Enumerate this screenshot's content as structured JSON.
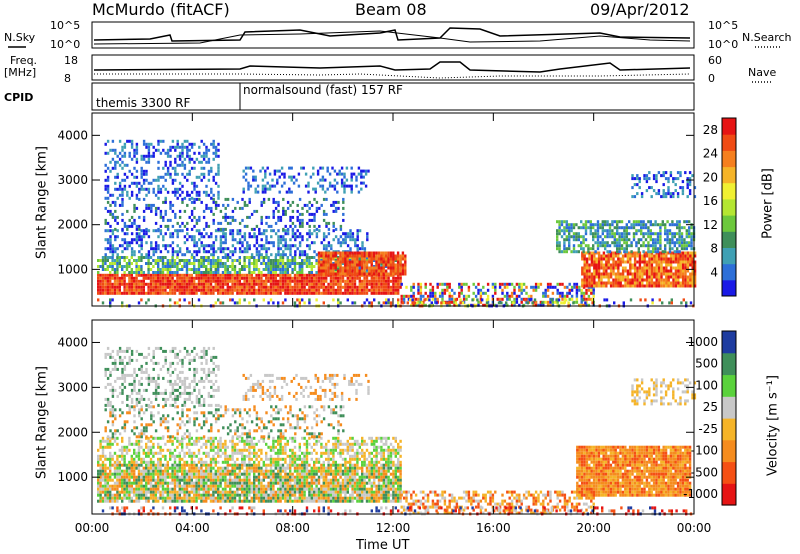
{
  "header": {
    "station": "McMurdo (fitACF)",
    "beam": "Beam 08",
    "date": "09/Apr/2012"
  },
  "status_panel": {
    "nsky_label": "N.Sky",
    "nsky_ticks": [
      "10^5",
      "10^0"
    ],
    "nsearch_label": "N.Search",
    "nsearch_ticks": [
      "10^5",
      "10^0"
    ],
    "freq_label_line1": "Freq.",
    "freq_label_line2": "[MHz]",
    "freq_ticks": [
      "18",
      "8"
    ],
    "nave_label": "Nave",
    "nave_ticks": [
      "60",
      "0"
    ],
    "cpid_label": "CPID",
    "cpid_entries": [
      "themis 3300 RF",
      "normalsound (fast) 157 RF"
    ]
  },
  "chart_data": [
    {
      "type": "heatmap",
      "title": "",
      "ylabel": "Slant Range [km]",
      "xlabel": "",
      "x_ticks": [
        "00:00",
        "04:00",
        "08:00",
        "12:00",
        "16:00",
        "20:00",
        "00:00"
      ],
      "xlim_hours": [
        0,
        24
      ],
      "y_ticks": [
        1000,
        2000,
        3000,
        4000
      ],
      "ylim": [
        180,
        4500
      ],
      "colorbar": {
        "label": "Power [dB]",
        "ticks": [
          4,
          8,
          12,
          16,
          20,
          24,
          28
        ],
        "range": [
          0,
          30
        ],
        "colors": [
          "#1a1ae6",
          "#2d6fd8",
          "#3fa0b4",
          "#3f8f5a",
          "#6cc83c",
          "#b4e632",
          "#f0f032",
          "#f5b428",
          "#f57f1e",
          "#f04b14",
          "#e61414"
        ]
      }
    },
    {
      "type": "heatmap",
      "title": "",
      "ylabel": "Slant Range [km]",
      "xlabel": "Time UT",
      "x_ticks": [
        "00:00",
        "04:00",
        "08:00",
        "12:00",
        "16:00",
        "20:00",
        "00:00"
      ],
      "xlim_hours": [
        0,
        24
      ],
      "y_ticks": [
        1000,
        2000,
        3000,
        4000
      ],
      "ylim": [
        180,
        4500
      ],
      "colorbar": {
        "label": "Velocity [m s⁻¹]",
        "ticks": [
          "1000",
          "500",
          "100",
          "25",
          "-25",
          "-100",
          "-500",
          "-1000"
        ],
        "colors": [
          "#1e3ca0",
          "#3f8f5a",
          "#5ad23c",
          "#c8c8c8",
          "#f5b428",
          "#f58c1e",
          "#f55014",
          "#e61414"
        ]
      }
    }
  ]
}
